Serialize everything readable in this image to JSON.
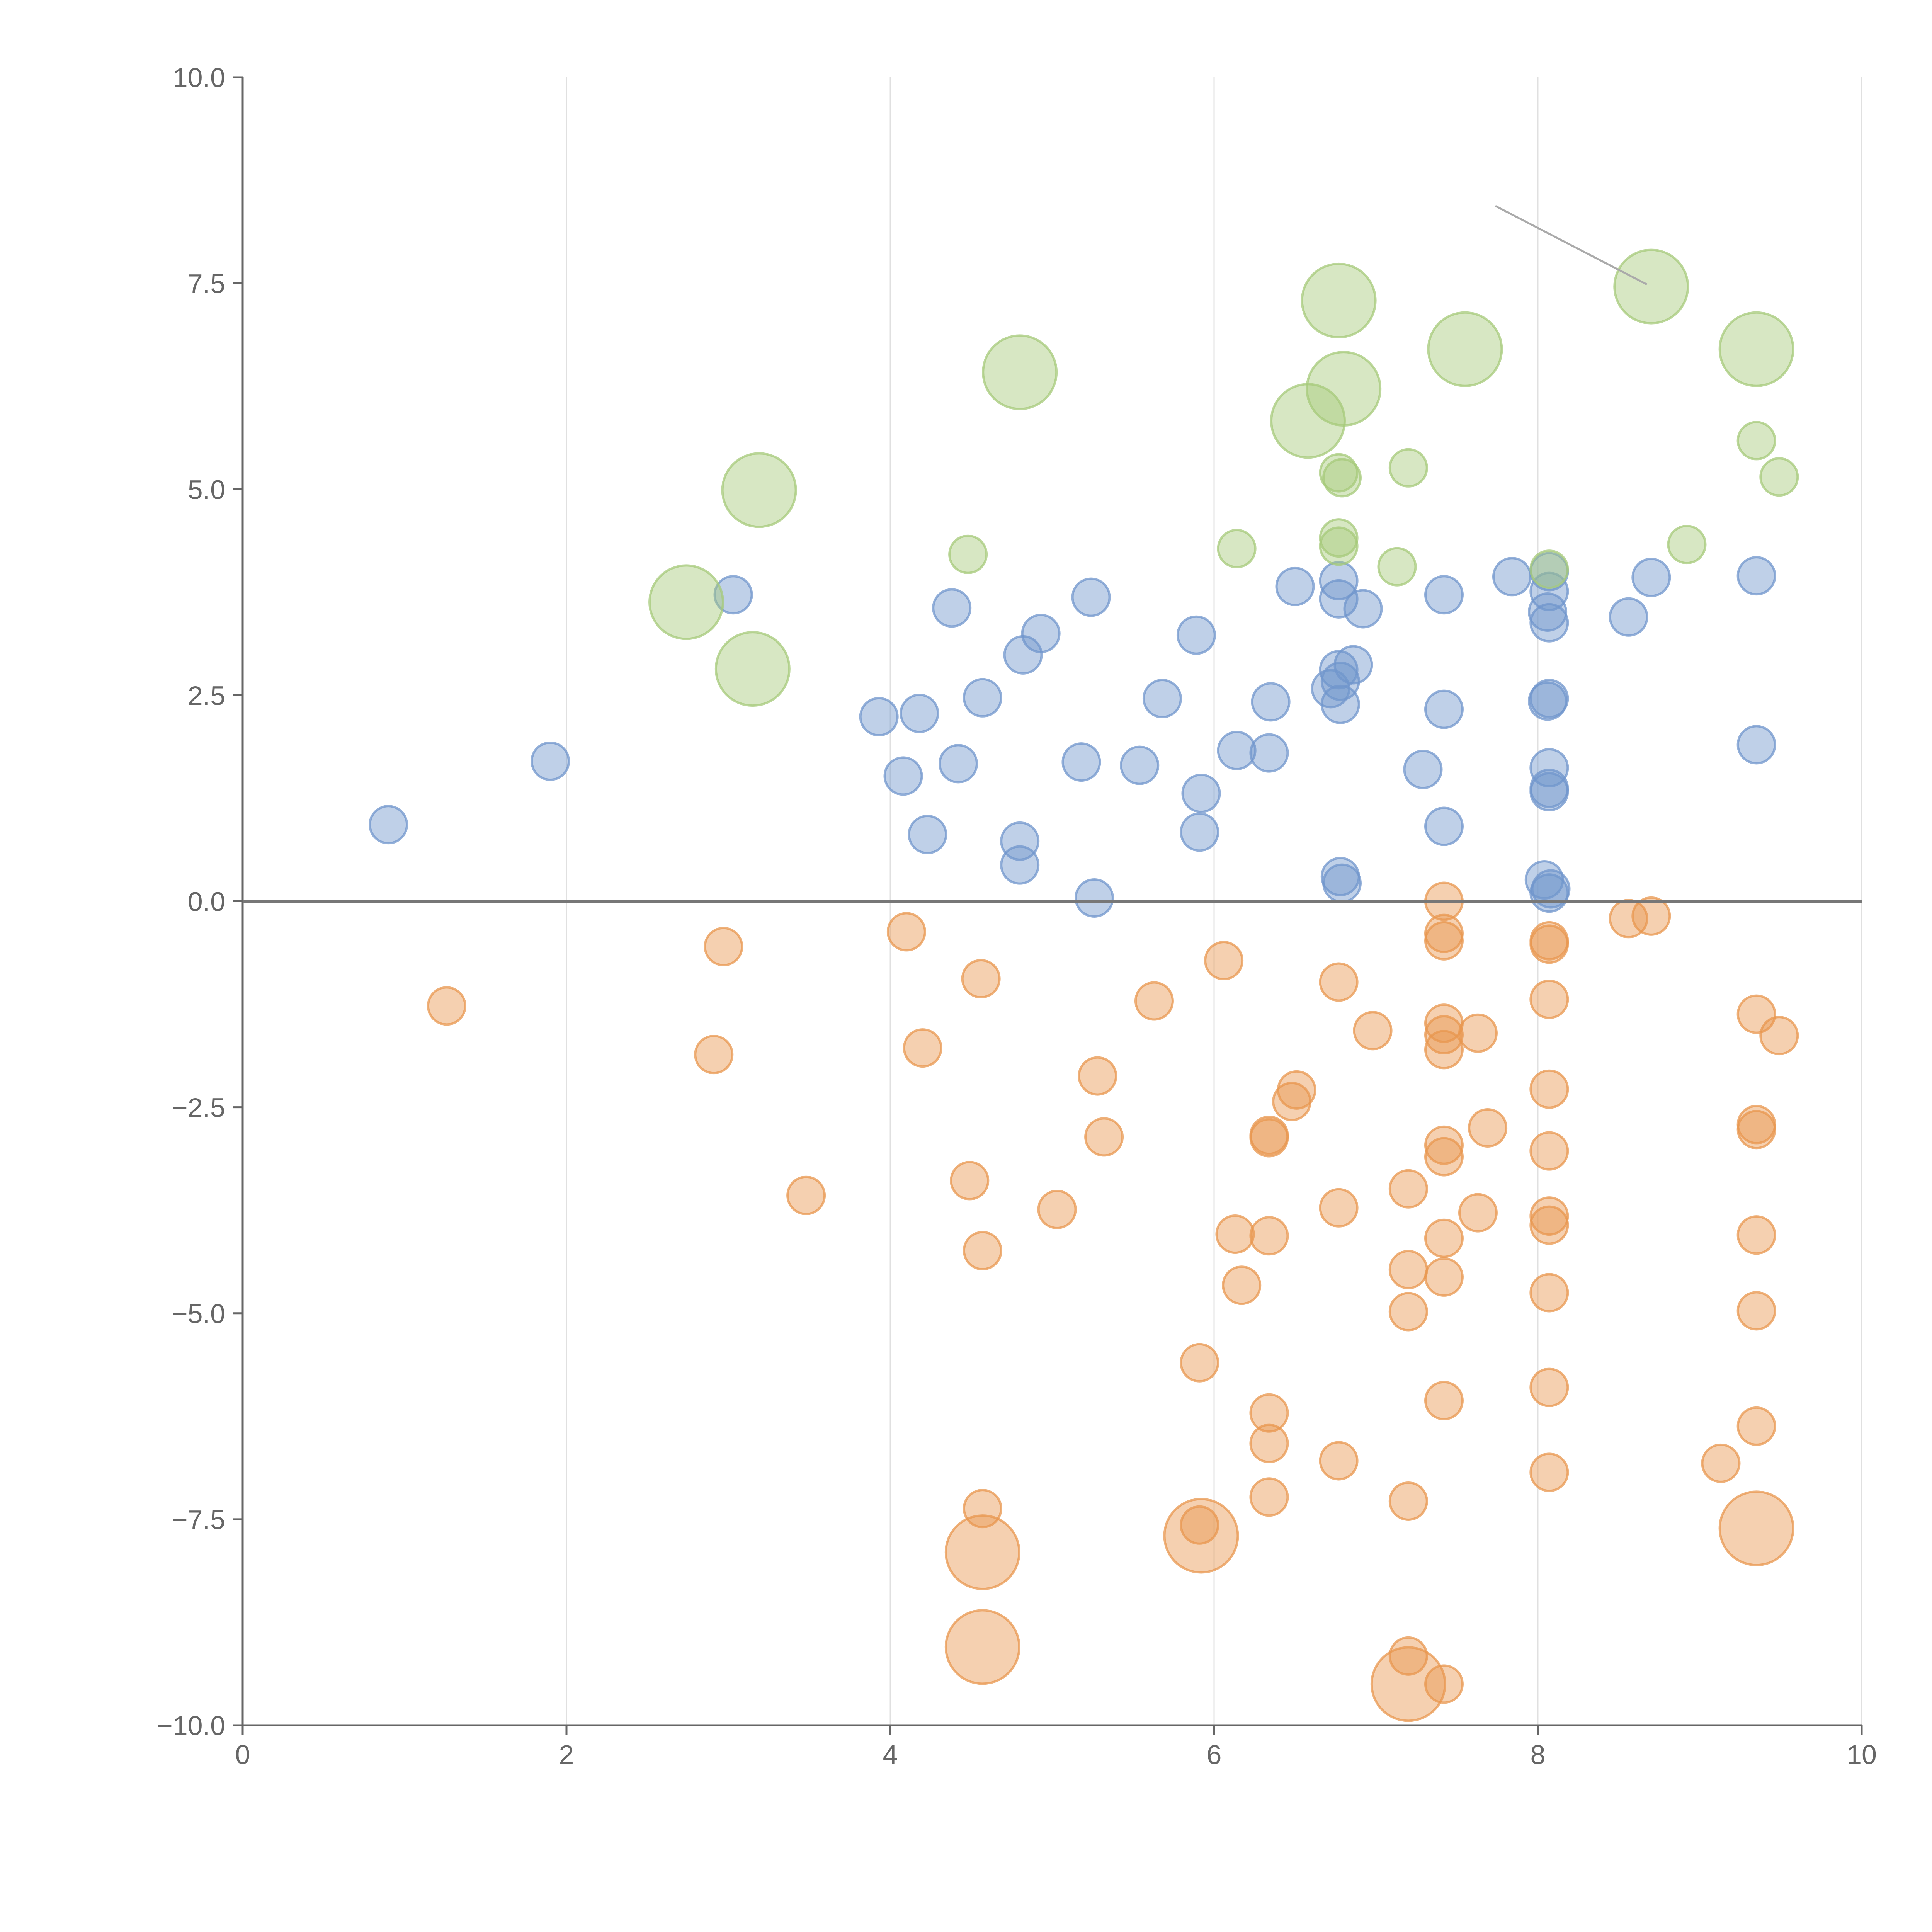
{
  "chart_data": {
    "type": "scatter",
    "title": "",
    "xlabel": "",
    "ylabel": "",
    "xlim": [
      0,
      10
    ],
    "ylim": [
      -10,
      10
    ],
    "x_ticks": [
      "0",
      "2",
      "4",
      "6",
      "8",
      "10"
    ],
    "y_ticks": [
      "10.0",
      "7.5",
      "5.0",
      "2.5",
      "0.0",
      "−2.5",
      "−5.0",
      "−7.5",
      "−10.0"
    ],
    "x_tick_values": [
      0,
      2,
      4,
      6,
      8,
      10
    ],
    "y_tick_values": [
      10,
      7.5,
      5,
      2.5,
      0,
      -2.5,
      -5,
      -7.5,
      -10
    ],
    "grid": "vertical lines at x ticks",
    "zero_line": true,
    "colors": {
      "blue": "#7096cc",
      "orange": "#e8974f",
      "green": "#a6c97a",
      "axis": "#666666",
      "grid": "#e0e0e0",
      "zero_line": "#777777",
      "leader_line": "#aaaaaa"
    },
    "series": [
      {
        "name": "blue",
        "color": "#7096cc",
        "points": [
          [
            0.9,
            0.93
          ],
          [
            1.9,
            1.7
          ],
          [
            3.03,
            3.72
          ],
          [
            3.93,
            2.24
          ],
          [
            4.08,
            1.52
          ],
          [
            4.18,
            2.28
          ],
          [
            4.23,
            0.81
          ],
          [
            4.38,
            3.56
          ],
          [
            4.42,
            1.67
          ],
          [
            4.57,
            2.47
          ],
          [
            4.8,
            0.44
          ],
          [
            4.8,
            0.73
          ],
          [
            4.82,
            2.99
          ],
          [
            4.93,
            3.25
          ],
          [
            5.18,
            1.69
          ],
          [
            5.24,
            3.69
          ],
          [
            5.26,
            0.04
          ],
          [
            5.54,
            1.65
          ],
          [
            5.68,
            2.46
          ],
          [
            5.89,
            3.23
          ],
          [
            5.91,
            0.84
          ],
          [
            5.92,
            1.31
          ],
          [
            6.14,
            1.83
          ],
          [
            6.34,
            1.8
          ],
          [
            6.35,
            2.42
          ],
          [
            6.5,
            3.82
          ],
          [
            6.72,
            2.58
          ],
          [
            6.77,
            3.67
          ],
          [
            6.77,
            3.89
          ],
          [
            6.77,
            2.81
          ],
          [
            6.78,
            2.67
          ],
          [
            6.78,
            2.39
          ],
          [
            6.78,
            0.3
          ],
          [
            6.79,
            0.22
          ],
          [
            6.86,
            2.87
          ],
          [
            6.92,
            3.55
          ],
          [
            7.29,
            1.6
          ],
          [
            7.42,
            3.72
          ],
          [
            7.42,
            2.33
          ],
          [
            7.42,
            0.91
          ],
          [
            7.84,
            3.94
          ],
          [
            8.04,
            0.26
          ],
          [
            8.06,
            3.51
          ],
          [
            8.06,
            2.43
          ],
          [
            8.07,
            4.0
          ],
          [
            8.07,
            3.76
          ],
          [
            8.07,
            3.38
          ],
          [
            8.07,
            2.46
          ],
          [
            8.07,
            1.62
          ],
          [
            8.07,
            1.37
          ],
          [
            8.07,
            1.33
          ],
          [
            8.07,
            0.1
          ],
          [
            8.08,
            0.15
          ],
          [
            8.56,
            3.45
          ],
          [
            8.7,
            3.93
          ],
          [
            9.35,
            3.95
          ],
          [
            9.35,
            1.9
          ]
        ]
      },
      {
        "name": "orange",
        "color": "#e8974f",
        "points": [
          [
            1.26,
            -1.27
          ],
          [
            2.91,
            -1.86
          ],
          [
            2.97,
            -0.55
          ],
          [
            3.48,
            -3.57
          ],
          [
            4.1,
            -0.37
          ],
          [
            4.2,
            -1.78
          ],
          [
            4.49,
            -3.39
          ],
          [
            4.56,
            -0.94
          ],
          [
            4.57,
            -4.24
          ],
          [
            4.57,
            -7.37
          ],
          [
            4.57,
            -7.9
          ],
          [
            4.57,
            -9.05
          ],
          [
            5.03,
            -3.74
          ],
          [
            5.28,
            -2.12
          ],
          [
            5.32,
            -2.86
          ],
          [
            5.63,
            -1.21
          ],
          [
            5.91,
            -5.6
          ],
          [
            5.91,
            -7.57
          ],
          [
            5.92,
            -7.7
          ],
          [
            6.06,
            -0.72
          ],
          [
            6.13,
            -4.04
          ],
          [
            6.17,
            -4.66
          ],
          [
            6.34,
            -2.84
          ],
          [
            6.34,
            -2.87
          ],
          [
            6.34,
            -4.06
          ],
          [
            6.34,
            -6.21
          ],
          [
            6.34,
            -6.58
          ],
          [
            6.34,
            -7.23
          ],
          [
            6.48,
            -2.43
          ],
          [
            6.51,
            -2.29
          ],
          [
            6.77,
            -0.98
          ],
          [
            6.77,
            -3.72
          ],
          [
            6.77,
            -6.79
          ],
          [
            6.98,
            -1.57
          ],
          [
            7.2,
            -3.49
          ],
          [
            7.2,
            -4.47
          ],
          [
            7.2,
            -4.98
          ],
          [
            7.2,
            -7.28
          ],
          [
            7.2,
            -9.16
          ],
          [
            7.2,
            -9.5
          ],
          [
            7.42,
            0.0
          ],
          [
            7.42,
            -0.39
          ],
          [
            7.42,
            -0.48
          ],
          [
            7.42,
            -1.48
          ],
          [
            7.42,
            -1.62
          ],
          [
            7.42,
            -1.8
          ],
          [
            7.42,
            -2.96
          ],
          [
            7.42,
            -3.1
          ],
          [
            7.42,
            -4.09
          ],
          [
            7.42,
            -4.56
          ],
          [
            7.42,
            -6.06
          ],
          [
            7.42,
            -9.5
          ],
          [
            7.63,
            -1.6
          ],
          [
            7.63,
            -3.78
          ],
          [
            7.69,
            -2.75
          ],
          [
            8.07,
            -0.48
          ],
          [
            8.07,
            -0.52
          ],
          [
            8.07,
            -1.19
          ],
          [
            8.07,
            -2.28
          ],
          [
            8.07,
            -3.03
          ],
          [
            8.07,
            -3.82
          ],
          [
            8.07,
            -3.93
          ],
          [
            8.07,
            -4.75
          ],
          [
            8.07,
            -5.9
          ],
          [
            8.07,
            -6.93
          ],
          [
            8.56,
            -0.21
          ],
          [
            8.7,
            -0.18
          ],
          [
            9.13,
            -6.82
          ],
          [
            9.35,
            -1.37
          ],
          [
            9.35,
            -2.71
          ],
          [
            9.35,
            -2.77
          ],
          [
            9.35,
            -4.05
          ],
          [
            9.35,
            -4.97
          ],
          [
            9.35,
            -6.37
          ],
          [
            9.35,
            -7.61
          ],
          [
            9.49,
            -1.63
          ]
        ]
      },
      {
        "name": "green",
        "color": "#a6c97a",
        "points": [
          [
            2.74,
            3.63
          ],
          [
            3.15,
            2.82
          ],
          [
            3.19,
            4.99
          ],
          [
            4.48,
            4.21
          ],
          [
            4.8,
            6.42
          ],
          [
            6.14,
            4.28
          ],
          [
            6.58,
            5.83
          ],
          [
            6.77,
            7.29
          ],
          [
            6.77,
            5.2
          ],
          [
            6.77,
            4.41
          ],
          [
            6.77,
            4.31
          ],
          [
            6.79,
            5.14
          ],
          [
            6.8,
            6.22
          ],
          [
            7.13,
            4.06
          ],
          [
            7.2,
            5.26
          ],
          [
            7.55,
            6.7
          ],
          [
            8.07,
            4.03
          ],
          [
            8.7,
            7.46
          ],
          [
            8.92,
            4.33
          ],
          [
            9.35,
            6.7
          ],
          [
            9.35,
            5.59
          ],
          [
            9.49,
            5.15
          ]
        ]
      }
    ]
  }
}
